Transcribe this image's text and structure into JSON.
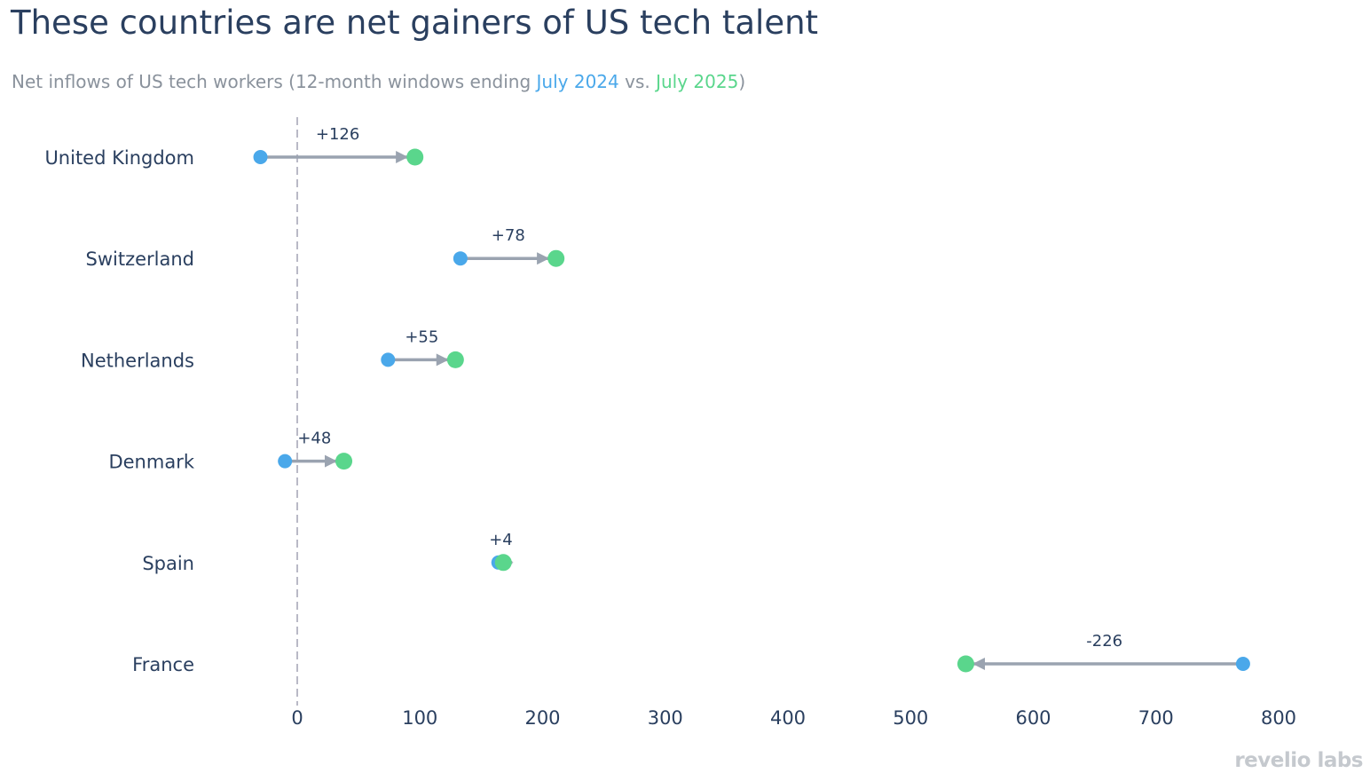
{
  "title": "These countries are net gainers of US tech talent",
  "subtitle": {
    "prefix": "Net inflows of US tech workers (12-month windows ending ",
    "period_a": "July 2024",
    "middle": " vs. ",
    "period_b": "July 2025",
    "suffix": ")"
  },
  "logo": "revelio labs",
  "colors": {
    "july_2024": "#4aa8ea",
    "july_2025": "#5ad68c",
    "connector": "#9aa3b0",
    "zero_line": "#b9b9c6",
    "text": "#2a3f5f"
  },
  "chart_data": {
    "type": "dumbbell",
    "title": "These countries are net gainers of US tech talent",
    "xlabel": "",
    "ylabel": "",
    "xlim": [
      -45,
      810
    ],
    "x_ticks": [
      0,
      100,
      200,
      300,
      400,
      500,
      600,
      700,
      800
    ],
    "zero_line": "dashed",
    "grid": false,
    "categories": [
      "United Kingdom",
      "Switzerland",
      "Netherlands",
      "Denmark",
      "Spain",
      "France"
    ],
    "series": [
      {
        "name": "July 2024",
        "color": "#4aa8ea",
        "values": [
          -30,
          133,
          74,
          -10,
          164,
          771
        ]
      },
      {
        "name": "July 2025",
        "color": "#5ad68c",
        "values": [
          96,
          211,
          129,
          38,
          168,
          545
        ]
      }
    ],
    "change_labels": [
      "+126",
      "+78",
      "+55",
      "+48",
      "+4",
      "-226"
    ]
  }
}
